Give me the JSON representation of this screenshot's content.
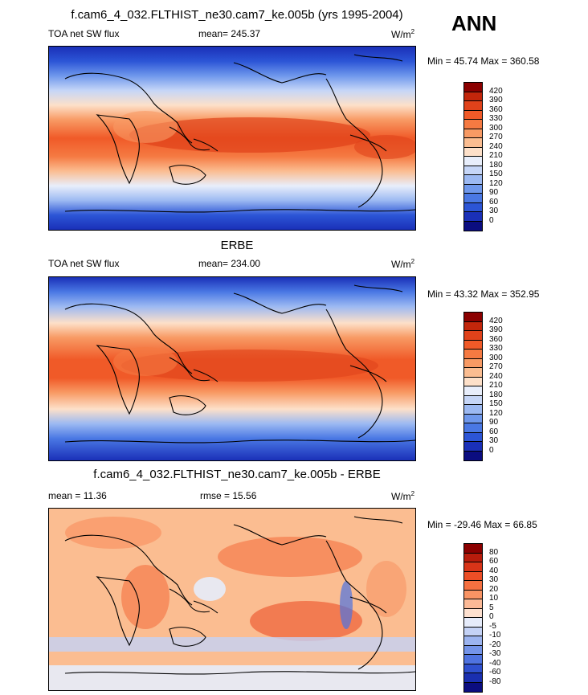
{
  "season": "ANN",
  "panels": [
    {
      "title": "f.cam6_4_032.FLTHIST_ne30.cam7_ke.005b (yrs 1995-2004)",
      "left": "TOA net SW flux",
      "center": "mean= 245.37",
      "unit_base": "W/m",
      "unit_exp": "2",
      "minmax": "Min =  45.74 Max = 360.58",
      "levels": [
        "420",
        "390",
        "360",
        "330",
        "300",
        "270",
        "240",
        "210",
        "180",
        "150",
        "120",
        "90",
        "60",
        "30",
        "0"
      ],
      "colors": [
        "#8b0000",
        "#c3260b",
        "#e0421a",
        "#f05a28",
        "#f57a42",
        "#f89a64",
        "#fbbd91",
        "#fde0c9",
        "#e8eefb",
        "#c6d6f7",
        "#9cb9f2",
        "#6f98ec",
        "#4a78e4",
        "#2c55d6",
        "#1a30b8",
        "#0b0d80"
      ]
    },
    {
      "title": "ERBE",
      "left": "TOA net SW flux",
      "center": "mean= 234.00",
      "unit_base": "W/m",
      "unit_exp": "2",
      "minmax": "Min =  43.32 Max = 352.95",
      "levels": [
        "420",
        "390",
        "360",
        "330",
        "300",
        "270",
        "240",
        "210",
        "180",
        "150",
        "120",
        "90",
        "60",
        "30",
        "0"
      ],
      "colors": [
        "#8b0000",
        "#c3260b",
        "#e0421a",
        "#f05a28",
        "#f57a42",
        "#f89a64",
        "#fbbd91",
        "#fde0c9",
        "#e8eefb",
        "#c6d6f7",
        "#9cb9f2",
        "#6f98ec",
        "#4a78e4",
        "#2c55d6",
        "#1a30b8",
        "#0b0d80"
      ]
    },
    {
      "title": "f.cam6_4_032.FLTHIST_ne30.cam7_ke.005b - ERBE",
      "left": "mean =  11.36",
      "center": "rmse =  15.56",
      "unit_base": "W/m",
      "unit_exp": "2",
      "minmax": "Min = -29.46 Max =  66.85",
      "levels": [
        "80",
        "60",
        "40",
        "30",
        "20",
        "10",
        "5",
        "0",
        "-5",
        "-10",
        "-20",
        "-30",
        "-40",
        "-60",
        "-80"
      ],
      "colors": [
        "#8b0000",
        "#b81c0c",
        "#d83418",
        "#ec4e26",
        "#f57040",
        "#f99464",
        "#fbb996",
        "#fde0cf",
        "#e6ecfb",
        "#c4d2f6",
        "#9cb4f0",
        "#7494e9",
        "#4f73e0",
        "#2f50cf",
        "#1a2fb0",
        "#0b0d80"
      ]
    }
  ]
}
